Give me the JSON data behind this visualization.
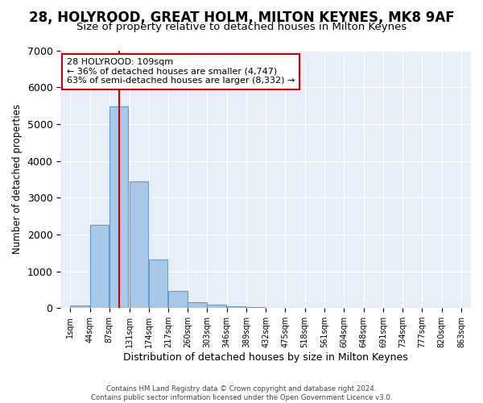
{
  "title": "28, HOLYROOD, GREAT HOLM, MILTON KEYNES, MK8 9AF",
  "subtitle": "Size of property relative to detached houses in Milton Keynes",
  "xlabel": "Distribution of detached houses by size in Milton Keynes",
  "ylabel": "Number of detached properties",
  "footer_line1": "Contains HM Land Registry data © Crown copyright and database right 2024.",
  "footer_line2": "Contains public sector information licensed under the Open Government Licence v3.0.",
  "annotation_line1": "28 HOLYROOD: 109sqm",
  "annotation_line2": "← 36% of detached houses are smaller (4,747)",
  "annotation_line3": "63% of semi-detached houses are larger (8,332) →",
  "bar_color": "#a8c8e8",
  "bar_edge_color": "#6699cc",
  "vline_color": "#cc0000",
  "vline_x": 109,
  "categories": [
    "1sqm",
    "44sqm",
    "87sqm",
    "131sqm",
    "174sqm",
    "217sqm",
    "260sqm",
    "303sqm",
    "346sqm",
    "389sqm",
    "432sqm",
    "475sqm",
    "518sqm",
    "561sqm",
    "604sqm",
    "648sqm",
    "691sqm",
    "734sqm",
    "777sqm",
    "820sqm",
    "863sqm"
  ],
  "bin_left_edges": [
    1,
    44,
    87,
    131,
    174,
    217,
    260,
    303,
    346,
    389,
    432,
    475,
    518,
    561,
    604,
    648,
    691,
    734,
    777,
    820
  ],
  "bin_width": 43,
  "values": [
    80,
    2270,
    5480,
    3450,
    1310,
    470,
    155,
    90,
    55,
    25,
    0,
    0,
    0,
    0,
    0,
    0,
    0,
    0,
    0,
    0
  ],
  "ylim": [
    0,
    7000
  ],
  "yticks": [
    0,
    1000,
    2000,
    3000,
    4000,
    5000,
    6000,
    7000
  ],
  "background_color": "#e8eef8",
  "title_fontsize": 12,
  "subtitle_fontsize": 9.5
}
